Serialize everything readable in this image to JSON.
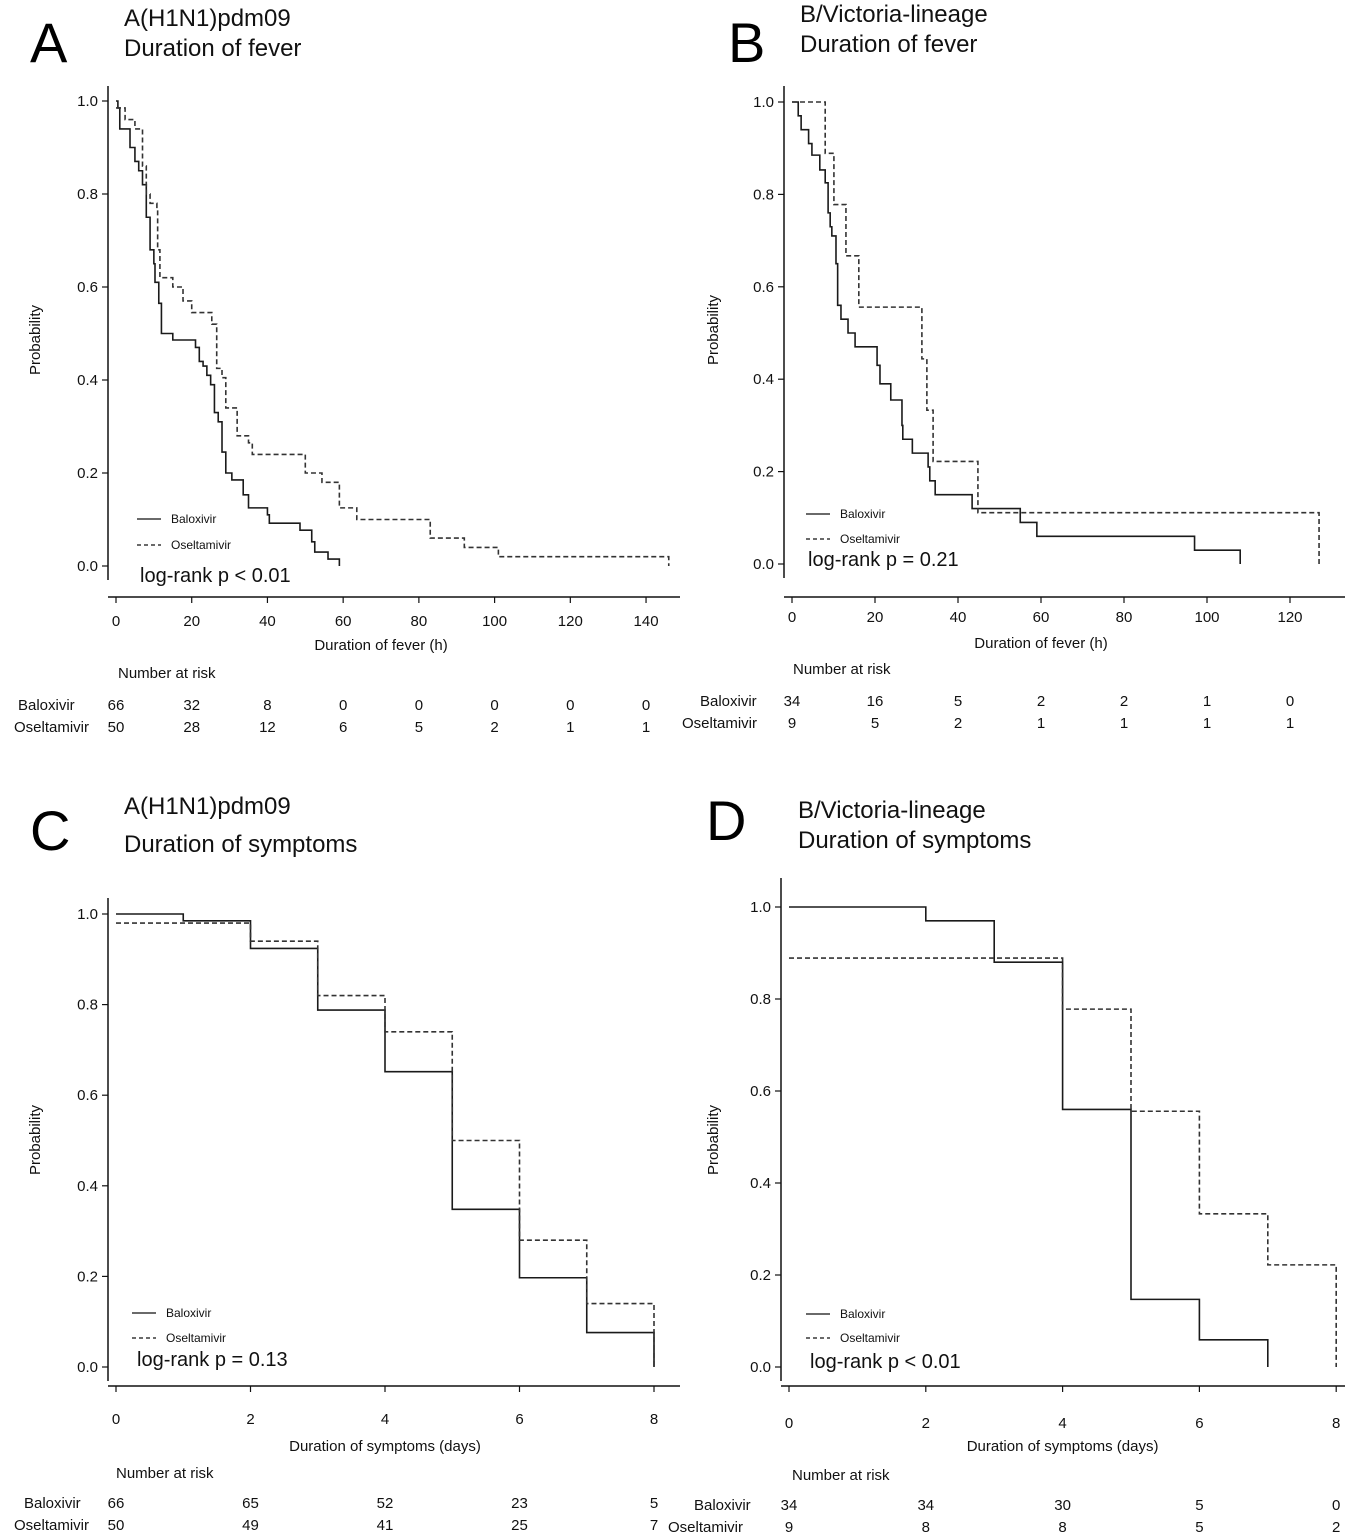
{
  "chart_data": [
    {
      "panel": "A",
      "type": "line",
      "step": true,
      "title": [
        "A(H1N1)pdm09",
        "Duration of fever"
      ],
      "xlabel": "Duration of fever (h)",
      "ylabel": "Probability",
      "xlim": [
        0,
        140
      ],
      "ylim": [
        0,
        1
      ],
      "xticks": [
        0,
        20,
        40,
        60,
        80,
        100,
        120,
        140
      ],
      "yticks": [
        0.0,
        0.2,
        0.4,
        0.6,
        0.8,
        1.0
      ],
      "legend": "bottom-left",
      "annotation": "log-rank p < 0.01",
      "series": [
        {
          "name": "Baloxivir",
          "style": "solid",
          "points": [
            [
              0,
              1.0
            ],
            [
              0.5,
              0.985
            ],
            [
              1,
              0.94
            ],
            [
              3.7,
              0.9
            ],
            [
              5,
              0.87
            ],
            [
              6,
              0.85
            ],
            [
              7,
              0.82
            ],
            [
              8,
              0.75
            ],
            [
              9,
              0.68
            ],
            [
              10,
              0.65
            ],
            [
              10.3,
              0.61
            ],
            [
              11.3,
              0.565
            ],
            [
              12,
              0.5
            ],
            [
              15,
              0.486
            ],
            [
              21,
              0.47
            ],
            [
              22,
              0.44
            ],
            [
              23,
              0.43
            ],
            [
              24,
              0.41
            ],
            [
              25,
              0.39
            ],
            [
              26,
              0.33
            ],
            [
              27,
              0.31
            ],
            [
              28,
              0.245
            ],
            [
              29,
              0.2
            ],
            [
              30.6,
              0.185
            ],
            [
              33.6,
              0.153
            ],
            [
              35,
              0.125
            ],
            [
              40,
              0.11
            ],
            [
              40.5,
              0.092
            ],
            [
              48.6,
              0.077
            ],
            [
              51.7,
              0.052
            ],
            [
              52.5,
              0.03
            ],
            [
              56,
              0.015
            ],
            [
              59,
              0.0
            ]
          ]
        },
        {
          "name": "Oseltamivir",
          "style": "dashed",
          "points": [
            [
              0,
              0.985
            ],
            [
              2.4,
              0.96
            ],
            [
              5,
              0.94
            ],
            [
              7,
              0.86
            ],
            [
              8,
              0.8
            ],
            [
              9,
              0.78
            ],
            [
              10.8,
              0.765
            ],
            [
              11,
              0.68
            ],
            [
              11.6,
              0.62
            ],
            [
              15,
              0.6
            ],
            [
              17.7,
              0.57
            ],
            [
              20,
              0.545
            ],
            [
              25.3,
              0.52
            ],
            [
              26.6,
              0.425
            ],
            [
              28,
              0.405
            ],
            [
              29,
              0.34
            ],
            [
              32,
              0.28
            ],
            [
              35,
              0.265
            ],
            [
              36,
              0.24
            ],
            [
              50,
              0.2
            ],
            [
              54.4,
              0.18
            ],
            [
              59,
              0.125
            ],
            [
              63.6,
              0.1
            ],
            [
              83,
              0.06
            ],
            [
              92,
              0.04
            ],
            [
              101,
              0.02
            ],
            [
              146,
              0.0
            ]
          ]
        }
      ],
      "risk_title": "Number at risk",
      "risk": [
        {
          "name": "Baloxivir",
          "values": [
            "66",
            "32",
            "8",
            "0",
            "0",
            "0",
            "0",
            "0"
          ]
        },
        {
          "name": "Oseltamivir",
          "values": [
            "50",
            "28",
            "12",
            "6",
            "5",
            "2",
            "1",
            "1"
          ]
        }
      ]
    },
    {
      "panel": "B",
      "type": "line",
      "step": true,
      "title": [
        "B/Victoria-lineage",
        "Duration of fever"
      ],
      "xlabel": "Duration of fever (h)",
      "ylabel": "Probability",
      "xlim": [
        0,
        130
      ],
      "ylim": [
        0,
        1
      ],
      "xticks": [
        0,
        20,
        40,
        60,
        80,
        100,
        120
      ],
      "yticks": [
        0.0,
        0.2,
        0.4,
        0.6,
        0.8,
        1.0
      ],
      "legend": "bottom-left",
      "annotation": "log-rank p = 0.21",
      "series": [
        {
          "name": "Baloxivir",
          "style": "solid",
          "points": [
            [
              0,
              1.0
            ],
            [
              1.5,
              0.97
            ],
            [
              2.2,
              0.94
            ],
            [
              4,
              0.91
            ],
            [
              4.8,
              0.885
            ],
            [
              6.7,
              0.853
            ],
            [
              8,
              0.825
            ],
            [
              8.7,
              0.76
            ],
            [
              9.2,
              0.73
            ],
            [
              9.6,
              0.71
            ],
            [
              10.6,
              0.65
            ],
            [
              11,
              0.56
            ],
            [
              11.8,
              0.53
            ],
            [
              13.5,
              0.5
            ],
            [
              15.2,
              0.47
            ],
            [
              20.5,
              0.43
            ],
            [
              21.2,
              0.39
            ],
            [
              23.8,
              0.355
            ],
            [
              26.5,
              0.3
            ],
            [
              26.7,
              0.27
            ],
            [
              29,
              0.24
            ],
            [
              32.8,
              0.21
            ],
            [
              33.2,
              0.18
            ],
            [
              34.5,
              0.15
            ],
            [
              43.4,
              0.12
            ],
            [
              55,
              0.09
            ],
            [
              59,
              0.06
            ],
            [
              97,
              0.03
            ],
            [
              108,
              0.0
            ]
          ]
        },
        {
          "name": "Oseltamivir",
          "style": "dashed",
          "points": [
            [
              0,
              1.0
            ],
            [
              8,
              0.889
            ],
            [
              10.1,
              0.778
            ],
            [
              13,
              0.667
            ],
            [
              16.1,
              0.556
            ],
            [
              31.3,
              0.444
            ],
            [
              32.5,
              0.333
            ],
            [
              34,
              0.222
            ],
            [
              44.8,
              0.111
            ],
            [
              127,
              0.0
            ]
          ]
        }
      ],
      "risk_title": "Number at risk",
      "risk": [
        {
          "name": "Baloxivir",
          "values": [
            "34",
            "16",
            "5",
            "2",
            "2",
            "1",
            "0"
          ]
        },
        {
          "name": "Oseltamivir",
          "values": [
            "9",
            "5",
            "2",
            "1",
            "1",
            "1",
            "1"
          ]
        }
      ]
    },
    {
      "panel": "C",
      "type": "line",
      "step": true,
      "title": [
        "A(H1N1)pdm09",
        "Duration of symptoms"
      ],
      "xlabel": "Duration of symptoms (days)",
      "ylabel": "Probability",
      "xlim": [
        0,
        8.5
      ],
      "ylim": [
        0,
        1
      ],
      "xticks": [
        0,
        2,
        4,
        6,
        8
      ],
      "yticks": [
        0.0,
        0.2,
        0.4,
        0.6,
        0.8,
        1.0
      ],
      "legend": "bottom-left",
      "annotation": "log-rank p = 0.13",
      "series": [
        {
          "name": "Baloxivir",
          "style": "solid",
          "points": [
            [
              0,
              1.0
            ],
            [
              1,
              0.985
            ],
            [
              2,
              0.924
            ],
            [
              3,
              0.788
            ],
            [
              4,
              0.652
            ],
            [
              5,
              0.348
            ],
            [
              6,
              0.197
            ],
            [
              7,
              0.076
            ],
            [
              8,
              0.0
            ]
          ]
        },
        {
          "name": "Oseltamivir",
          "style": "dashed",
          "points": [
            [
              0,
              0.98
            ],
            [
              2,
              0.94
            ],
            [
              3,
              0.82
            ],
            [
              4,
              0.74
            ],
            [
              5,
              0.5
            ],
            [
              6,
              0.28
            ],
            [
              7,
              0.14
            ],
            [
              8,
              0.0
            ]
          ]
        }
      ],
      "risk_title": "Number at risk",
      "risk": [
        {
          "name": "Baloxivir",
          "values": [
            "66",
            "65",
            "52",
            "23",
            "5"
          ]
        },
        {
          "name": "Oseltamivir",
          "values": [
            "50",
            "49",
            "41",
            "25",
            "7"
          ]
        }
      ]
    },
    {
      "panel": "D",
      "type": "line",
      "step": true,
      "title": [
        "B/Victoria-lineage",
        "Duration of symptoms"
      ],
      "xlabel": "Duration of symptoms (days)",
      "ylabel": "Probability",
      "xlim": [
        0,
        8.2
      ],
      "ylim": [
        0,
        1
      ],
      "xticks": [
        0,
        2,
        4,
        6,
        8
      ],
      "yticks": [
        0.0,
        0.2,
        0.4,
        0.6,
        0.8,
        1.0
      ],
      "legend": "bottom-left",
      "annotation": "log-rank p < 0.01",
      "series": [
        {
          "name": "Baloxivir",
          "style": "solid",
          "points": [
            [
              0,
              1.0
            ],
            [
              2,
              0.97
            ],
            [
              3,
              0.88
            ],
            [
              4,
              0.56
            ],
            [
              5,
              0.147
            ],
            [
              6,
              0.059
            ],
            [
              7,
              0.0
            ]
          ]
        },
        {
          "name": "Oseltamivir",
          "style": "dashed",
          "points": [
            [
              0,
              0.889
            ],
            [
              4,
              0.778
            ],
            [
              5,
              0.556
            ],
            [
              6,
              0.333
            ],
            [
              7,
              0.222
            ],
            [
              8,
              0.0
            ]
          ]
        }
      ],
      "risk_title": "Number at risk",
      "risk": [
        {
          "name": "Baloxivir",
          "values": [
            "34",
            "34",
            "30",
            "5",
            "0"
          ]
        },
        {
          "name": "Oseltamivir",
          "values": [
            "9",
            "8",
            "8",
            "5",
            "2"
          ]
        }
      ]
    }
  ]
}
